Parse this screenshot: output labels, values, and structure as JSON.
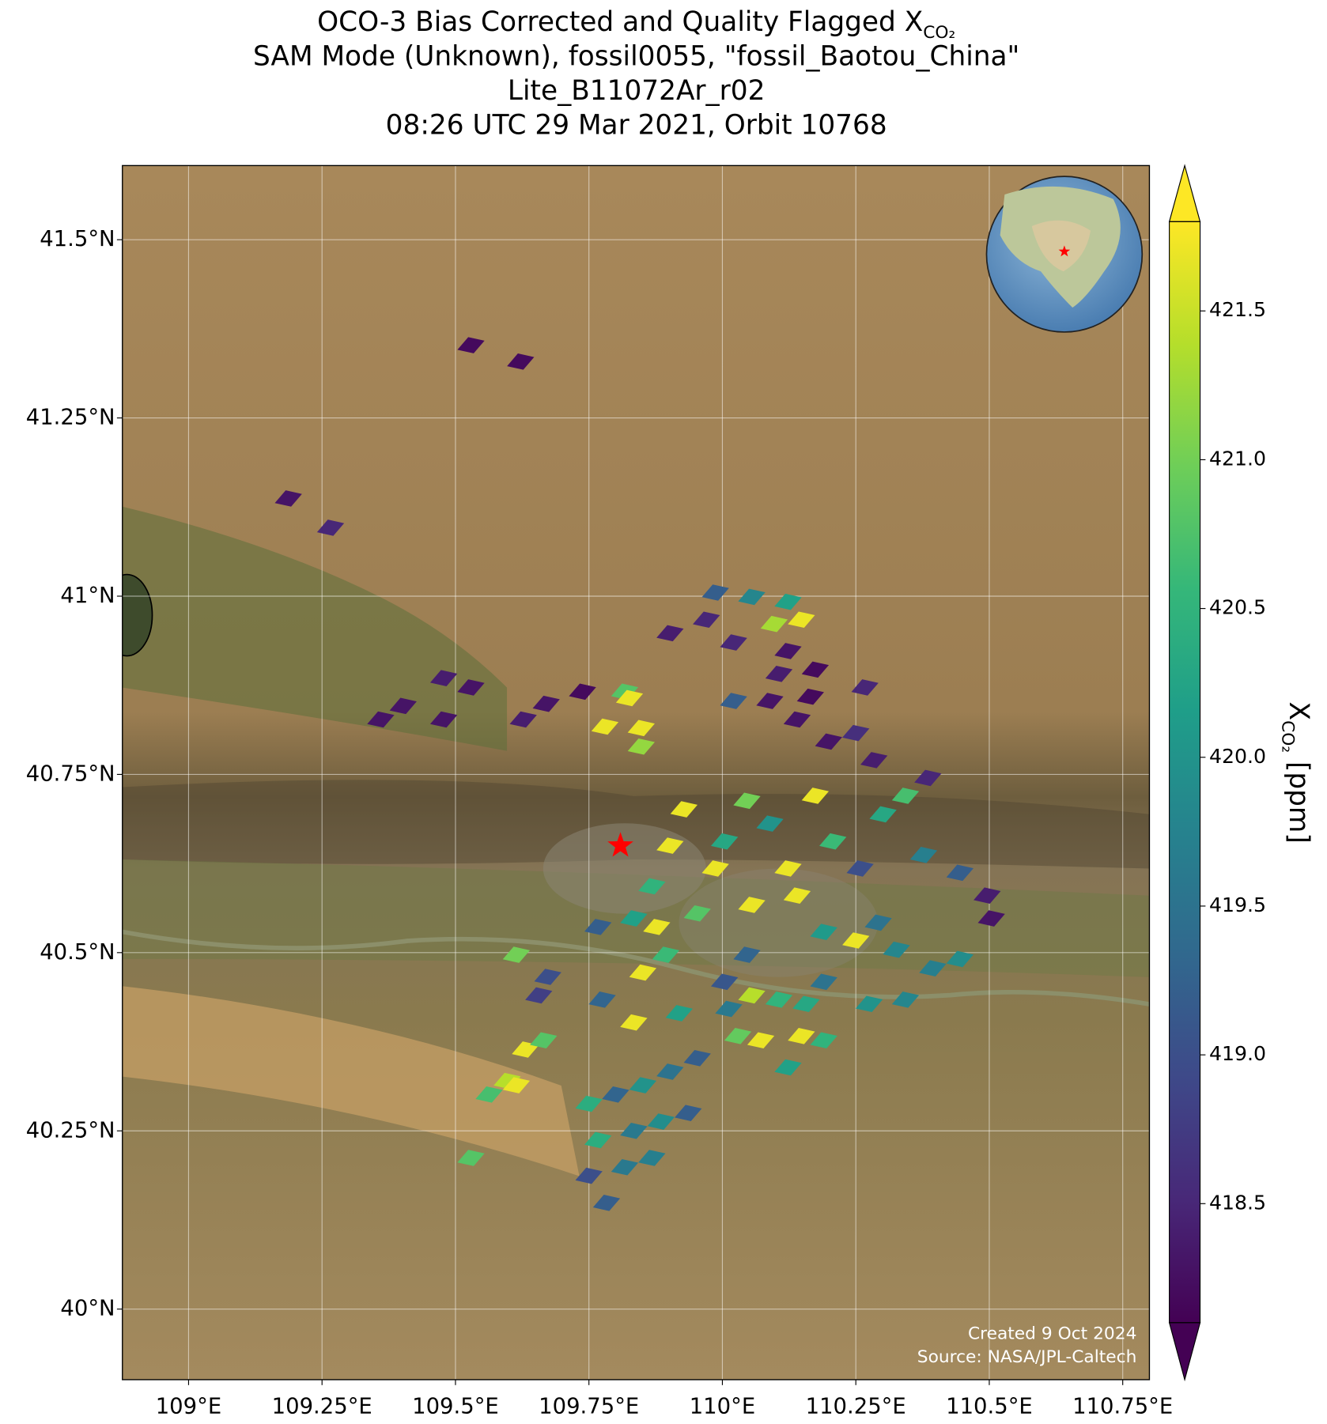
{
  "chart_data": {
    "type": "map",
    "title_lines": [
      {
        "text": "OCO-3 Bias Corrected and Quality Flagged X",
        "sub": "CO₂"
      },
      {
        "text": "SAM Mode (Unknown), fossil0055, \"fossil_Baotou_China\""
      },
      {
        "text": "Lite_B11072Ar_r02"
      },
      {
        "text": "08:26 UTC 29 Mar 2021, Orbit 10768"
      }
    ],
    "xlim": [
      108.876,
      110.8
    ],
    "ylim": [
      39.901,
      41.604
    ],
    "xticks": [
      {
        "value": 109,
        "label": "109°E"
      },
      {
        "value": 109.25,
        "label": "109.25°E"
      },
      {
        "value": 109.5,
        "label": "109.5°E"
      },
      {
        "value": 109.75,
        "label": "109.75°E"
      },
      {
        "value": 110,
        "label": "110°E"
      },
      {
        "value": 110.25,
        "label": "110.25°E"
      },
      {
        "value": 110.5,
        "label": "110.5°E"
      },
      {
        "value": 110.75,
        "label": "110.75°E"
      }
    ],
    "yticks": [
      {
        "value": 40,
        "label": "40°N"
      },
      {
        "value": 40.25,
        "label": "40.25°N"
      },
      {
        "value": 40.5,
        "label": "40.5°N"
      },
      {
        "value": 40.75,
        "label": "40.75°N"
      },
      {
        "value": 41,
        "label": "41°N"
      },
      {
        "value": 41.25,
        "label": "41.25°N"
      },
      {
        "value": 41.5,
        "label": "41.5°N"
      }
    ],
    "grid": true,
    "colormap": "viridis",
    "clim": [
      418.1,
      421.8
    ],
    "cticks": [
      418.5,
      {
        "value": 419,
        "label": "419.0"
      },
      419.5,
      {
        "value": 420,
        "label": "420.0"
      },
      420.5,
      {
        "value": 421,
        "label": "421.0"
      },
      421.5
    ],
    "colorbar_label": {
      "text": "X",
      "sub": "CO₂",
      "unit": " [ppm]"
    },
    "site": {
      "x": 109.809,
      "y": 40.65,
      "color": "#ff0000"
    },
    "soundings": {
      "x": [
        109.529,
        109.622,
        109.187,
        109.266,
        109.36,
        109.402,
        109.478,
        109.529,
        109.478,
        109.627,
        109.67,
        109.738,
        109.817,
        109.826,
        109.78,
        109.848,
        109.848,
        109.987,
        110.055,
        110.123,
        110.148,
        110.097,
        109.97,
        109.902,
        110.021,
        110.123,
        110.174,
        110.106,
        110.021,
        110.089,
        110.165,
        110.267,
        110.14,
        110.199,
        110.25,
        110.284,
        109.928,
        109.902,
        109.868,
        109.877,
        109.767,
        109.834,
        109.953,
        109.987,
        110.004,
        110.046,
        110.089,
        110.123,
        110.14,
        110.055,
        110.174,
        110.207,
        110.258,
        110.301,
        110.343,
        110.385,
        110.377,
        110.445,
        110.496,
        110.504,
        110.25,
        110.326,
        110.394,
        110.445,
        110.292,
        110.19,
        109.614,
        109.673,
        109.656,
        109.775,
        109.851,
        109.894,
        109.834,
        109.919,
        110.004,
        110.046,
        110.012,
        110.055,
        110.106,
        110.157,
        110.19,
        110.148,
        110.072,
        110.029,
        110.123,
        110.19,
        110.275,
        110.343,
        109.631,
        109.665,
        109.597,
        109.563,
        109.614,
        109.75,
        109.8,
        109.851,
        109.902,
        109.953,
        109.767,
        109.834,
        109.885,
        109.936,
        109.817,
        109.75,
        109.783,
        109.529,
        109.868
      ],
      "y": [
        41.352,
        41.329,
        41.137,
        41.096,
        40.827,
        40.846,
        40.885,
        40.872,
        40.827,
        40.827,
        40.849,
        40.866,
        40.866,
        40.857,
        40.817,
        40.815,
        40.789,
        41.005,
        40.999,
        40.992,
        40.967,
        40.961,
        40.967,
        40.948,
        40.935,
        40.923,
        40.897,
        40.891,
        40.853,
        40.853,
        40.859,
        40.872,
        40.827,
        40.796,
        40.808,
        40.77,
        40.701,
        40.65,
        40.593,
        40.536,
        40.536,
        40.548,
        40.555,
        40.618,
        40.656,
        40.713,
        40.681,
        40.618,
        40.58,
        40.567,
        40.72,
        40.656,
        40.618,
        40.694,
        40.72,
        40.745,
        40.637,
        40.612,
        40.58,
        40.548,
        40.517,
        40.504,
        40.478,
        40.491,
        40.542,
        40.529,
        40.497,
        40.466,
        40.44,
        40.434,
        40.472,
        40.497,
        40.402,
        40.415,
        40.459,
        40.497,
        40.421,
        40.44,
        40.434,
        40.428,
        40.459,
        40.383,
        40.377,
        40.383,
        40.339,
        40.377,
        40.428,
        40.434,
        40.364,
        40.377,
        40.32,
        40.301,
        40.314,
        40.288,
        40.301,
        40.314,
        40.333,
        40.352,
        40.237,
        40.25,
        40.263,
        40.275,
        40.199,
        40.187,
        40.149,
        40.212,
        40.212
      ],
      "values": [
        418.2,
        418.2,
        418.3,
        418.5,
        418.3,
        418.3,
        418.4,
        418.3,
        418.3,
        418.4,
        418.3,
        418.2,
        420.8,
        421.7,
        421.7,
        421.7,
        421.2,
        419.2,
        419.8,
        420.2,
        421.7,
        421.3,
        418.5,
        418.4,
        418.5,
        418.3,
        418.2,
        418.4,
        419.2,
        418.3,
        418.2,
        418.5,
        418.3,
        418.3,
        418.6,
        418.4,
        421.7,
        421.7,
        420.5,
        421.7,
        419.2,
        420.2,
        420.8,
        421.7,
        420.3,
        421.0,
        420.0,
        421.7,
        421.7,
        421.7,
        421.7,
        420.6,
        419.0,
        420.3,
        420.7,
        418.5,
        419.7,
        419.2,
        418.4,
        418.3,
        421.7,
        419.8,
        419.7,
        419.9,
        419.5,
        420.1,
        421.0,
        419.0,
        418.8,
        419.3,
        421.7,
        420.6,
        421.7,
        420.2,
        419.1,
        419.3,
        419.6,
        421.4,
        420.5,
        420.3,
        419.5,
        421.7,
        421.7,
        420.9,
        420.2,
        420.5,
        420.0,
        419.8,
        421.7,
        420.8,
        421.4,
        420.7,
        421.7,
        420.4,
        419.3,
        420.0,
        419.5,
        419.2,
        420.4,
        419.6,
        419.9,
        419.2,
        419.6,
        419.0,
        419.2,
        420.8,
        419.7
      ]
    },
    "credits": [
      "Created 9 Oct 2024",
      "Source: NASA/JPL-Caltech"
    ]
  }
}
